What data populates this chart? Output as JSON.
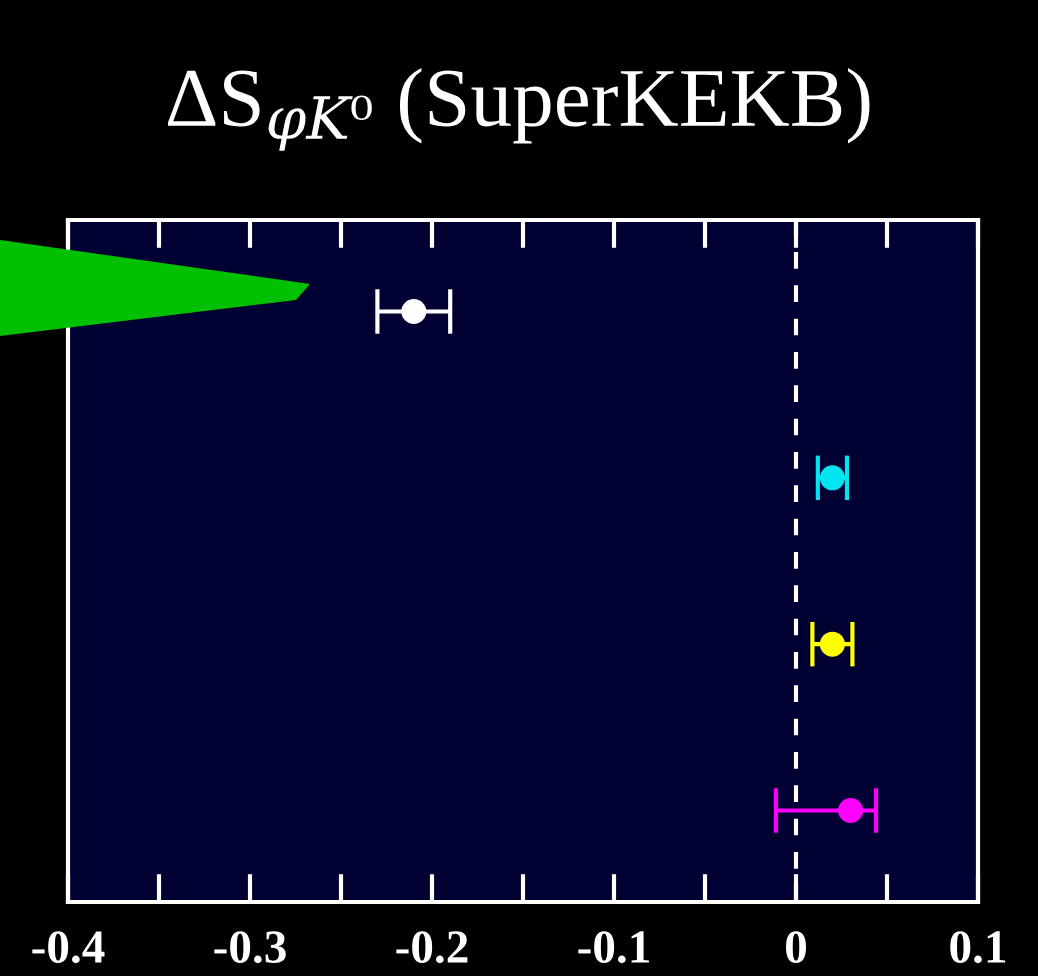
{
  "chart_data": {
    "type": "scatter",
    "orientation": "horizontal",
    "title": "ΔS$_{φK⁰}$ (SuperKEKB)",
    "categories": [
      null,
      null,
      null,
      null
    ],
    "values": [
      -0.21,
      0.02,
      0.02,
      0.03
    ],
    "errors": [
      0.02,
      0.008,
      0.011,
      [
        -0.011,
        0.044
      ]
    ],
    "colors": [
      "#ffffff",
      "#00e5f0",
      "#ffff00",
      "#ff00ff"
    ],
    "marker": "circle",
    "xlim": [
      -0.4,
      0.1
    ],
    "xticks": [
      -0.4,
      {
        "value": -0.35,
        "label": null
      },
      -0.3,
      {
        "value": -0.25,
        "label": null
      },
      -0.2,
      {
        "value": -0.15,
        "label": null
      },
      -0.1,
      {
        "value": -0.05,
        "label": null
      },
      0,
      {
        "value": 0.05,
        "label": null
      },
      0.1
    ],
    "ref_lines": [
      {
        "axis": "x",
        "value": 0,
        "color": "#ffffff",
        "line_style": "dashed"
      }
    ]
  }
}
